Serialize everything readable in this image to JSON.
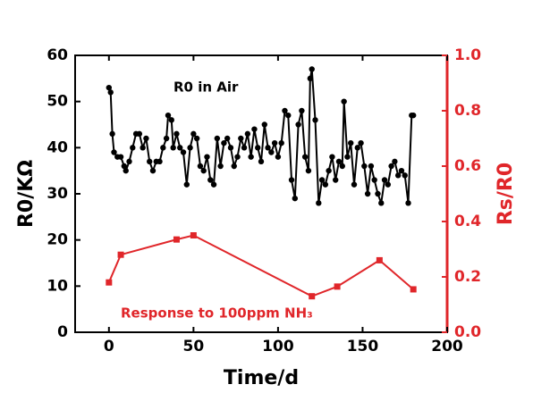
{
  "chart_data": {
    "type": "line",
    "xlabel": "Time/d",
    "ylabel": "R0/KΩ",
    "y2label": "Rs/R0",
    "annotations": [
      "R0 in Air",
      "Response to 100ppm NH₃"
    ],
    "xlim": [
      -20,
      200
    ],
    "xticks": [
      0,
      50,
      100,
      150,
      200
    ],
    "ylim": [
      0,
      60
    ],
    "yticks": [
      0,
      10,
      20,
      30,
      40,
      50,
      60
    ],
    "y2lim": [
      0,
      1
    ],
    "y2ticks": [
      {
        "value": 0,
        "label": "0.0"
      },
      0.2,
      0.4,
      0.6,
      0.8,
      {
        "value": 1,
        "label": "1.0"
      }
    ],
    "y2color": "#e0262a",
    "series": [
      {
        "name": "R0 in Air",
        "color": "#000000",
        "x": [
          0,
          1,
          2,
          3,
          5,
          7,
          9,
          10,
          12,
          14,
          16,
          18,
          20,
          22,
          24,
          26,
          28,
          30,
          32,
          34,
          35,
          37,
          38,
          40,
          42,
          44,
          46,
          48,
          50,
          52,
          54,
          56,
          58,
          60,
          62,
          64,
          66,
          68,
          70,
          72,
          74,
          76,
          78,
          80,
          82,
          84,
          86,
          88,
          90,
          92,
          94,
          96,
          98,
          100,
          102,
          104,
          106,
          108,
          110,
          112,
          114,
          116,
          118,
          119,
          120,
          122,
          124,
          126,
          128,
          130,
          132,
          134,
          136,
          138,
          139,
          141,
          143,
          145,
          147,
          149,
          151,
          153,
          155,
          157,
          159,
          161,
          163,
          165,
          167,
          169,
          171,
          173,
          175,
          177,
          179,
          180
        ],
        "values": [
          53,
          52,
          43,
          39,
          38,
          38,
          36,
          35,
          37,
          40,
          43,
          43,
          40,
          42,
          37,
          35,
          37,
          37,
          40,
          42,
          47,
          46,
          40,
          43,
          40,
          39,
          32,
          40,
          43,
          42,
          36,
          35,
          38,
          33,
          32,
          42,
          36,
          41,
          42,
          40,
          36,
          38,
          42,
          40,
          43,
          38,
          44,
          40,
          37,
          45,
          40,
          39,
          41,
          38,
          41,
          48,
          47,
          33,
          29,
          45,
          48,
          38,
          35,
          55,
          57,
          46,
          28,
          33,
          32,
          35,
          38,
          33,
          37,
          36,
          50,
          38,
          41,
          32,
          40,
          41,
          36,
          30,
          36,
          33,
          30,
          28,
          33,
          32,
          36,
          37,
          34,
          35,
          34,
          28,
          47,
          47
        ]
      },
      {
        "name": "Response to 100ppm NH₃",
        "color": "#e0262a",
        "axis": "y2",
        "x": [
          0,
          7,
          40,
          50,
          120,
          135,
          160,
          180
        ],
        "values": [
          0.18,
          0.28,
          0.335,
          0.35,
          0.13,
          0.165,
          0.26,
          0.155
        ]
      }
    ]
  }
}
